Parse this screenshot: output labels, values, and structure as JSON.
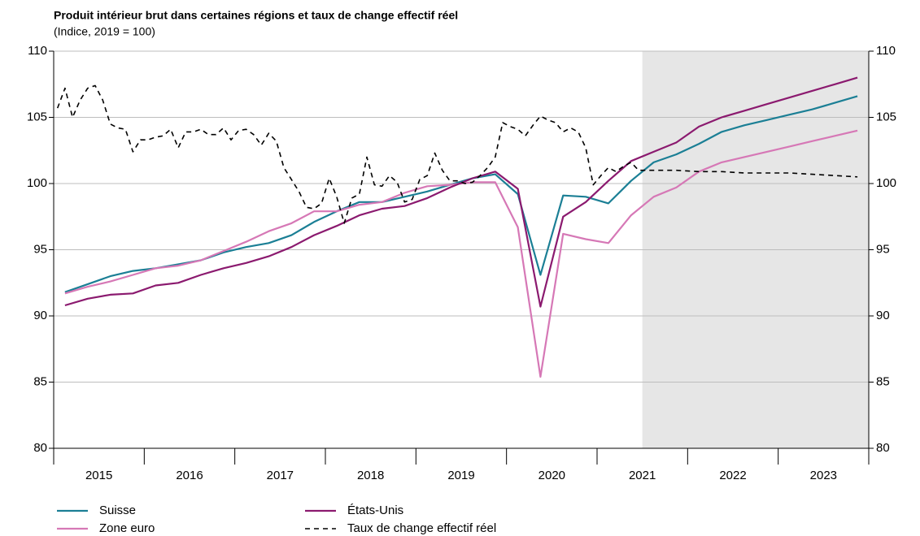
{
  "chart_data": {
    "type": "line",
    "title": "Produit intérieur brut dans certaines régions et taux de change effectif réel",
    "subtitle": "(Indice, 2019 = 100)",
    "xlim": [
      2015,
      2024
    ],
    "xticks": [
      2015,
      2016,
      2017,
      2018,
      2019,
      2020,
      2021,
      2022,
      2023,
      2024
    ],
    "year_labels": [
      {
        "value": 2015.5,
        "label": "2015"
      },
      {
        "value": 2016.5,
        "label": "2016"
      },
      {
        "value": 2017.5,
        "label": "2017"
      },
      {
        "value": 2018.5,
        "label": "2018"
      },
      {
        "value": 2019.5,
        "label": "2019"
      },
      {
        "value": 2020.5,
        "label": "2020"
      },
      {
        "value": 2021.5,
        "label": "2021"
      },
      {
        "value": 2022.5,
        "label": "2022"
      },
      {
        "value": 2023.5,
        "label": "2023"
      }
    ],
    "forecast_from": 2021.5,
    "ylim": [
      80,
      110
    ],
    "yticks": [
      80,
      85,
      90,
      95,
      100,
      105,
      110
    ],
    "y2lim": [
      80,
      110
    ],
    "y2ticks": [
      80,
      85,
      90,
      95,
      100,
      105,
      110
    ],
    "grid": true,
    "x": [
      2015.125,
      2015.375,
      2015.625,
      2015.875,
      2016.125,
      2016.375,
      2016.625,
      2016.875,
      2017.125,
      2017.375,
      2017.625,
      2017.875,
      2018.125,
      2018.375,
      2018.625,
      2018.875,
      2019.125,
      2019.375,
      2019.625,
      2019.875,
      2020.125,
      2020.375,
      2020.625,
      2020.875,
      2021.125,
      2021.375,
      2021.625,
      2021.875,
      2022.125,
      2022.375,
      2022.625,
      2022.875,
      2023.125,
      2023.375,
      2023.625,
      2023.875
    ],
    "series": [
      {
        "name": "Suisse",
        "color": "#1b7f95",
        "values": [
          91.8,
          92.4,
          93.0,
          93.4,
          93.6,
          93.9,
          94.2,
          94.8,
          95.2,
          95.5,
          96.1,
          97.1,
          97.9,
          98.6,
          98.6,
          99.0,
          99.4,
          99.9,
          100.4,
          100.7,
          99.2,
          93.1,
          99.1,
          99.0,
          98.5,
          100.2,
          101.6,
          102.2,
          103.0,
          103.9,
          104.4,
          104.8,
          105.2,
          105.6,
          106.1,
          106.6
        ]
      },
      {
        "name": "Zone euro",
        "color": "#d678b6",
        "values": [
          91.7,
          92.2,
          92.6,
          93.1,
          93.6,
          93.8,
          94.2,
          94.9,
          95.6,
          96.4,
          97.0,
          97.9,
          97.9,
          98.4,
          98.6,
          99.3,
          99.8,
          99.9,
          100.1,
          100.1,
          96.7,
          85.4,
          96.2,
          95.8,
          95.5,
          97.6,
          99.0,
          99.7,
          100.9,
          101.6,
          102.0,
          102.4,
          102.8,
          103.2,
          103.6,
          104.0
        ]
      },
      {
        "name": "États-Unis",
        "color": "#8b1a6f",
        "values": [
          90.8,
          91.3,
          91.6,
          91.7,
          92.3,
          92.5,
          93.1,
          93.6,
          94.0,
          94.5,
          95.2,
          96.1,
          96.8,
          97.6,
          98.1,
          98.3,
          98.9,
          99.7,
          100.4,
          100.9,
          99.6,
          90.7,
          97.5,
          98.6,
          100.2,
          101.7,
          102.4,
          103.1,
          104.3,
          105.0,
          105.5,
          106.0,
          106.5,
          107.0,
          107.5,
          108.0
        ]
      },
      {
        "name": "Taux de change effectif réel",
        "color": "#000000",
        "dashed": true,
        "axis": "y2",
        "x": [
          2015.042,
          2015.125,
          2015.208,
          2015.292,
          2015.375,
          2015.458,
          2015.542,
          2015.625,
          2015.708,
          2015.792,
          2015.875,
          2015.958,
          2016.042,
          2016.125,
          2016.208,
          2016.292,
          2016.375,
          2016.458,
          2016.542,
          2016.625,
          2016.708,
          2016.792,
          2016.875,
          2016.958,
          2017.042,
          2017.125,
          2017.208,
          2017.292,
          2017.375,
          2017.458,
          2017.542,
          2017.625,
          2017.708,
          2017.792,
          2017.875,
          2017.958,
          2018.042,
          2018.125,
          2018.208,
          2018.292,
          2018.375,
          2018.458,
          2018.542,
          2018.625,
          2018.708,
          2018.792,
          2018.875,
          2018.958,
          2019.042,
          2019.125,
          2019.208,
          2019.292,
          2019.375,
          2019.458,
          2019.542,
          2019.625,
          2019.708,
          2019.792,
          2019.875,
          2019.958,
          2020.042,
          2020.125,
          2020.208,
          2020.292,
          2020.375,
          2020.458,
          2020.542,
          2020.625,
          2020.708,
          2020.792,
          2020.875,
          2020.958,
          2021.042,
          2021.125,
          2021.208,
          2021.292,
          2021.375,
          2021.458,
          2021.625,
          2021.875,
          2022.125,
          2022.375,
          2022.625,
          2022.875,
          2023.125,
          2023.375,
          2023.625,
          2023.875
        ],
        "values": [
          105.7,
          107.2,
          105.0,
          106.3,
          107.2,
          107.4,
          106.3,
          104.5,
          104.2,
          104.1,
          102.4,
          103.3,
          103.3,
          103.5,
          103.6,
          104.1,
          102.7,
          103.9,
          103.9,
          104.1,
          103.7,
          103.7,
          104.2,
          103.3,
          104.0,
          104.1,
          103.7,
          102.9,
          103.8,
          103.2,
          101.2,
          100.3,
          99.4,
          98.2,
          98.1,
          98.5,
          100.4,
          99.0,
          97.0,
          98.9,
          99.2,
          102.0,
          99.9,
          99.8,
          100.6,
          100.1,
          98.6,
          98.8,
          100.3,
          100.6,
          102.3,
          101.0,
          100.2,
          100.2,
          100.0,
          100.1,
          100.6,
          101.2,
          102.0,
          104.6,
          104.3,
          104.1,
          103.6,
          104.4,
          105.1,
          104.8,
          104.6,
          103.9,
          104.2,
          103.9,
          102.7,
          99.9,
          100.6,
          101.2,
          100.9,
          101.3,
          101.6,
          101.0,
          101.0,
          101.0,
          100.9,
          100.9,
          100.8,
          100.8,
          100.8,
          100.7,
          100.6,
          100.5
        ]
      }
    ]
  }
}
